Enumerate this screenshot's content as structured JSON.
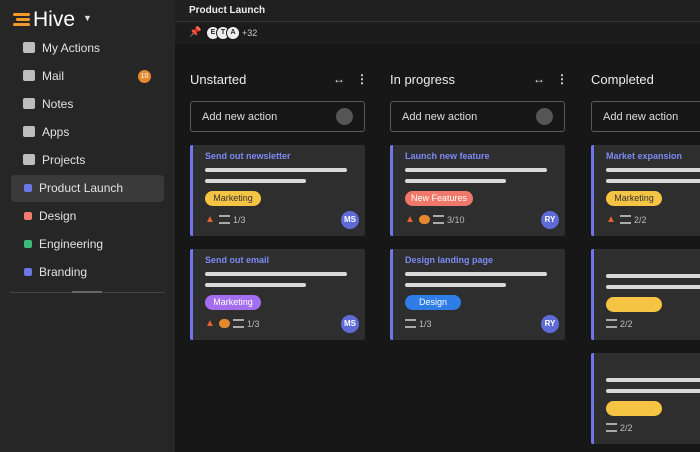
{
  "sidebar": {
    "logo": "Hive",
    "items": [
      {
        "label": "My Actions",
        "icon": "home"
      },
      {
        "label": "Mail",
        "icon": "mail",
        "badge": "10"
      },
      {
        "label": "Notes",
        "icon": "note"
      },
      {
        "label": "Apps",
        "icon": "apps"
      },
      {
        "label": "Projects",
        "icon": "folder"
      },
      {
        "label": "Product Launch",
        "color": "#6d78e8",
        "selected": true
      },
      {
        "label": "Design",
        "color": "#ef7c6c"
      },
      {
        "label": "Engineering",
        "color": "#3cb878"
      },
      {
        "label": "Branding",
        "color": "#6d78e8"
      }
    ]
  },
  "header": {
    "title": "Product Launch",
    "avatars": [
      "E",
      "T",
      "A"
    ],
    "more": "+32"
  },
  "columns": [
    {
      "title": "Unstarted",
      "add": "Add new action",
      "cards": [
        {
          "title": "Send out newsletter",
          "tag": "Marketing",
          "tag_color": "#f5c443",
          "warning": true,
          "count": "1/3",
          "assignee": "MS"
        },
        {
          "title": "Send out email",
          "tag": "Marketing",
          "tag_color": "#a36ef0",
          "warning": true,
          "comment": true,
          "count": "1/3",
          "assignee": "MS"
        }
      ]
    },
    {
      "title": "In progress",
      "add": "Add new action",
      "cards": [
        {
          "title": "Launch new feature",
          "tag": "New Features",
          "tag_color": "#f0786a",
          "warning": true,
          "comment": true,
          "count": "3/10",
          "assignee": "RY"
        },
        {
          "title": "Design landing page",
          "tag": "Design",
          "tag_color": "#2f7de6",
          "count": "1/3",
          "assignee": "RY"
        }
      ]
    },
    {
      "title": "Completed",
      "add": "Add new action",
      "cards": [
        {
          "title": "Market expansion",
          "tag": "Marketing",
          "tag_color": "#f5c443",
          "warning": true,
          "count": "2/2"
        },
        {
          "tag_color": "#f5c443",
          "count": "2/2"
        },
        {
          "tag_color": "#f5c443",
          "count": "2/2"
        }
      ]
    }
  ]
}
